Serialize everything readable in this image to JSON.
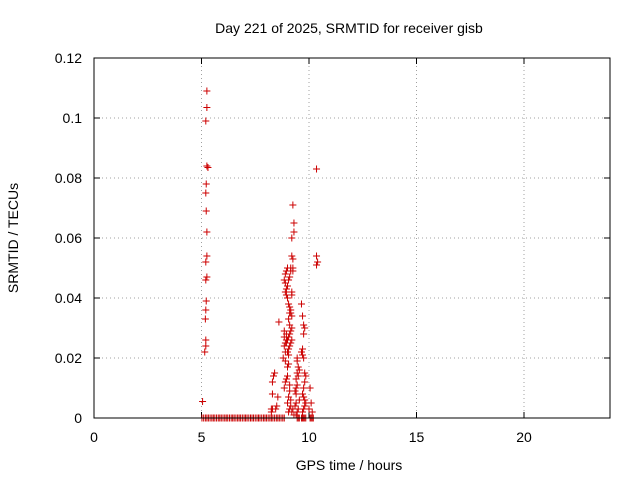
{
  "chart_data": {
    "type": "scatter",
    "title": "Day 221 of 2025, SRMTID for receiver gisb",
    "xlabel": "GPS time / hours",
    "ylabel": "SRMTID / TECUs",
    "xlim": [
      0,
      24
    ],
    "ylim": [
      0,
      0.12
    ],
    "xticks": [
      0,
      5,
      10,
      15,
      20
    ],
    "xtick_labels": [
      "0",
      "5",
      "10",
      "15",
      "20"
    ],
    "yticks": [
      0,
      0.02,
      0.04,
      0.06,
      0.08,
      0.1,
      0.12
    ],
    "ytick_labels": [
      "0",
      "0.02",
      "0.04",
      "0.06",
      "0.08",
      "0.1",
      "0.12"
    ],
    "grid": true,
    "marker": "+",
    "color": "#cc0000",
    "series": [
      {
        "x": [
          5.02,
          5.1,
          5.18,
          5.25,
          5.32,
          5.4,
          5.48,
          5.55,
          5.62,
          5.7,
          5.78,
          5.85,
          5.92,
          6.0,
          6.08,
          6.15,
          6.22,
          6.3,
          6.38,
          6.45,
          6.52,
          6.6,
          6.68,
          6.75,
          6.82,
          6.9,
          6.98,
          7.05,
          7.12,
          7.2,
          7.28,
          7.35,
          7.42,
          7.5,
          7.58,
          7.65,
          7.72,
          7.8,
          7.88,
          7.95,
          8.02,
          8.1,
          8.18,
          8.25,
          8.32,
          8.4,
          8.48,
          8.55,
          8.62,
          8.7,
          8.78,
          8.85,
          9.45,
          9.5,
          9.55,
          9.65,
          9.7,
          9.75,
          9.8,
          9.85,
          10.05,
          10.1,
          10.15,
          10.2,
          5.05,
          5.15,
          5.2,
          5.2,
          5.18,
          5.2,
          5.22,
          5.2,
          5.2,
          5.22,
          5.2,
          5.22,
          5.25,
          5.2,
          5.25,
          5.25,
          5.3,
          5.25,
          5.25,
          5.25,
          8.25,
          8.25,
          8.3,
          8.3,
          8.3,
          8.35,
          8.4,
          8.45,
          8.5,
          8.55,
          8.6,
          8.8,
          8.85,
          8.85,
          8.85,
          8.9,
          8.9,
          8.9,
          8.95,
          8.95,
          8.85,
          8.9,
          8.95,
          9.0,
          9.0,
          9.05,
          9.05,
          9.0,
          9.05,
          9.1,
          9.1,
          9.05,
          9.1,
          9.15,
          9.15,
          9.1,
          9.05,
          9.0,
          8.95,
          8.9,
          8.85,
          8.9,
          8.95,
          9.0,
          9.05,
          9.1,
          9.15,
          9.2,
          9.2,
          9.15,
          9.1,
          9.05,
          9.0,
          8.95,
          9.1,
          9.15,
          9.2,
          9.2,
          9.25,
          9.25,
          9.2,
          9.15,
          9.1,
          9.05,
          9.0,
          8.95,
          8.9,
          9.0,
          9.05,
          9.1,
          9.15,
          9.2,
          9.25,
          9.3,
          9.3,
          9.25,
          9.2,
          9.15,
          9.2,
          9.25,
          9.3,
          9.4,
          9.45,
          9.5,
          9.45,
          9.4,
          9.35,
          9.4,
          9.45,
          9.5,
          9.55,
          9.35,
          9.4,
          9.45,
          9.4,
          9.5,
          9.55,
          9.45,
          9.65,
          9.7,
          9.75,
          9.8,
          9.75,
          9.7,
          9.65,
          9.7,
          9.75,
          9.8,
          9.85,
          9.8,
          9.75,
          9.7,
          9.75,
          9.8,
          9.85,
          9.8,
          9.75,
          9.7,
          10.05,
          10.1,
          10.0,
          10.15,
          10.35,
          10.35,
          10.4,
          10.35
        ],
        "y": [
          0,
          0,
          0,
          0,
          0,
          0,
          0,
          0,
          0,
          0,
          0,
          0,
          0,
          0,
          0,
          0,
          0,
          0,
          0,
          0,
          0,
          0,
          0,
          0,
          0,
          0,
          0,
          0,
          0,
          0,
          0,
          0,
          0,
          0,
          0,
          0,
          0,
          0,
          0,
          0,
          0,
          0,
          0,
          0,
          0,
          0,
          0,
          0,
          0,
          0,
          0,
          0,
          0,
          0,
          0,
          0,
          0,
          0,
          0,
          0,
          0,
          0,
          0,
          0,
          0.0055,
          0.022,
          0.024,
          0.026,
          0.033,
          0.036,
          0.039,
          0.046,
          0.052,
          0.069,
          0.075,
          0.078,
          0.084,
          0.099,
          0.1035,
          0.109,
          0.0835,
          0.062,
          0.054,
          0.047,
          0.002,
          0.003,
          0.003,
          0.008,
          0.012,
          0.014,
          0.015,
          0.003,
          0.004,
          0.007,
          0.032,
          0.02,
          0.024,
          0.027,
          0.029,
          0.019,
          0.022,
          0.025,
          0.026,
          0.028,
          0.01,
          0.012,
          0.013,
          0.014,
          0.017,
          0.018,
          0.021,
          0.005,
          0.007,
          0.009,
          0.011,
          0.002,
          0.003,
          0.004,
          0.006,
          0.037,
          0.038,
          0.04,
          0.041,
          0.045,
          0.046,
          0.048,
          0.049,
          0.05,
          0.033,
          0.035,
          0.036,
          0.034,
          0.03,
          0.029,
          0.028,
          0.027,
          0.026,
          0.025,
          0.031,
          0.035,
          0.041,
          0.042,
          0.049,
          0.053,
          0.054,
          0.05,
          0.047,
          0.046,
          0.044,
          0.043,
          0.042,
          0.022,
          0.023,
          0.024,
          0.025,
          0.026,
          0.05,
          0.062,
          0.065,
          0.071,
          0.06,
          0.049,
          0.002,
          0.003,
          0.001,
          0.013,
          0.015,
          0.017,
          0.02,
          0.008,
          0.009,
          0.01,
          0.011,
          0.014,
          0.016,
          0.004,
          0.005,
          0.002,
          0.001,
          0.003,
          0.006,
          0.019,
          0.038,
          0.034,
          0.031,
          0.03,
          0.028,
          0.023,
          0.022,
          0.021,
          0.02,
          0.015,
          0.014,
          0.012,
          0.01,
          0.008,
          0.007,
          0.006,
          0.005,
          0.004,
          0.003,
          0.002,
          0.01,
          0.005,
          0.003,
          0.002,
          0.083,
          0.054,
          0.052,
          0.051
        ]
      }
    ]
  }
}
